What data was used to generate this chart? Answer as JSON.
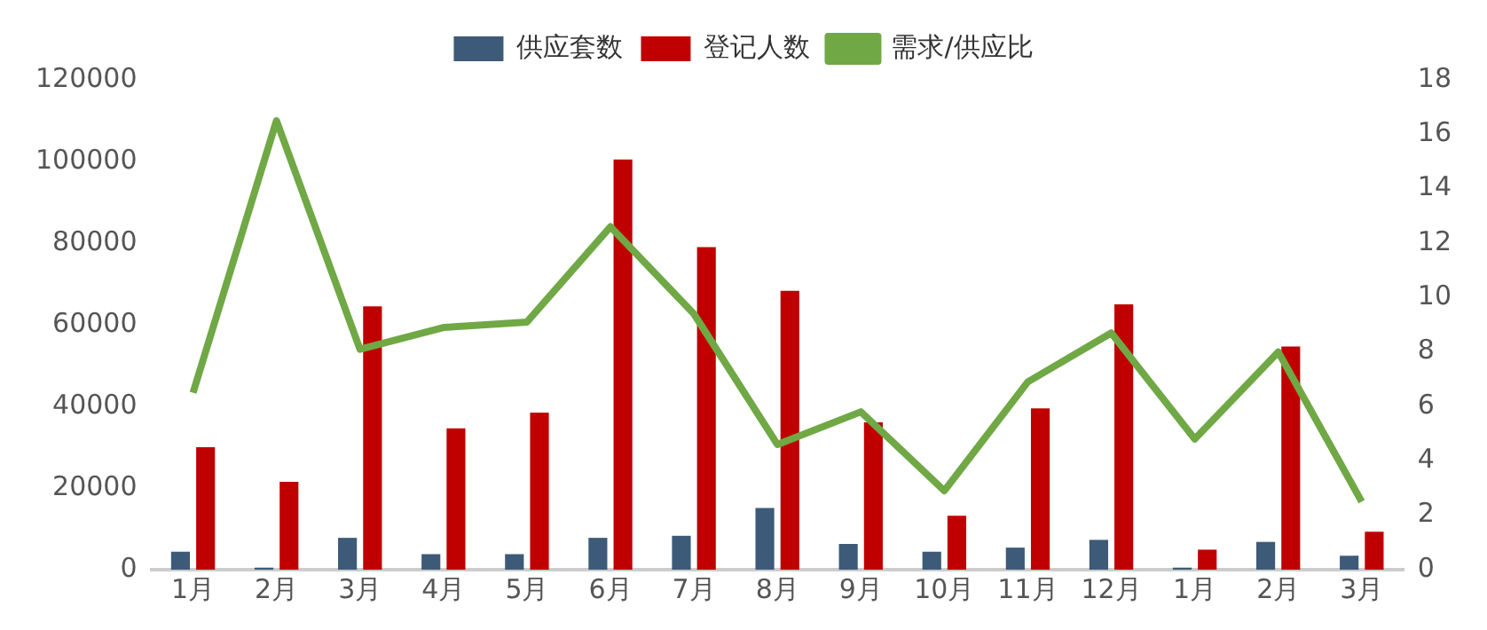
{
  "chart_data": {
    "type": "bar",
    "categories": [
      "1月",
      "2月",
      "3月",
      "4月",
      "5月",
      "6月",
      "7月",
      "8月",
      "9月",
      "10月",
      "11月",
      "12月",
      "1月",
      "2月",
      "3月"
    ],
    "series": [
      {
        "name": "供应套数",
        "color": "#3d5a78",
        "values": [
          4400,
          500,
          7800,
          3800,
          3800,
          7800,
          8300,
          15100,
          6300,
          4400,
          5400,
          7300,
          500,
          6800,
          3400
        ]
      },
      {
        "name": "登记人数",
        "color": "#c00000",
        "values": [
          30000,
          21500,
          64500,
          34600,
          38500,
          100500,
          79000,
          68300,
          36100,
          13200,
          39500,
          65000,
          4900,
          54700,
          9300
        ]
      },
      {
        "name": "需求/供应比",
        "type": "line",
        "axis": "y2",
        "color": "#70a845",
        "values": [
          6.5,
          16.5,
          8.1,
          8.9,
          9.1,
          12.6,
          9.4,
          4.6,
          5.8,
          2.9,
          6.9,
          8.7,
          4.8,
          8.0,
          2.5
        ]
      }
    ],
    "ylim": [
      0,
      120000
    ],
    "yticks": [
      0,
      20000,
      40000,
      60000,
      80000,
      100000,
      120000
    ],
    "y2lim": [
      0,
      18
    ],
    "y2ticks": [
      0,
      2,
      4,
      6,
      8,
      10,
      12,
      14,
      16,
      18
    ],
    "grid": false,
    "legend": "top",
    "marker": "none",
    "line_style": "solid"
  }
}
